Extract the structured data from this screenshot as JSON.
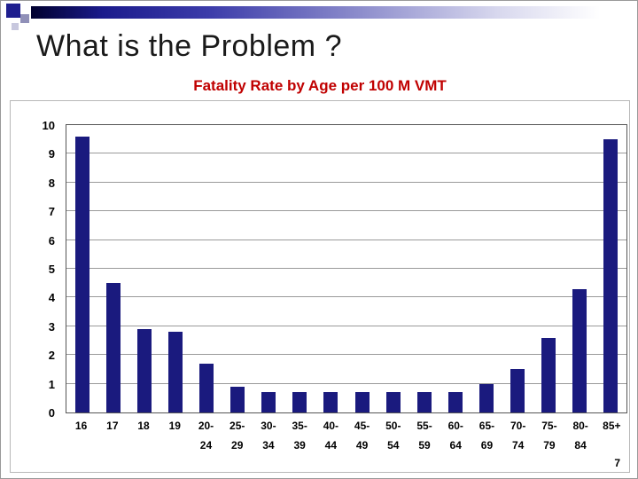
{
  "slide": {
    "title": "What is the Problem ?",
    "page_number": "7"
  },
  "chart_data": {
    "type": "bar",
    "title": "Fatality Rate by Age per 100 M VMT",
    "categories": [
      "16",
      "17",
      "18",
      "19",
      "20-24",
      "25-29",
      "30-34",
      "35-39",
      "40-44",
      "45-49",
      "50-54",
      "55-59",
      "60-64",
      "65-69",
      "70-74",
      "75-79",
      "80-84",
      "85+"
    ],
    "values": [
      9.6,
      4.5,
      2.9,
      2.8,
      1.7,
      0.9,
      0.7,
      0.7,
      0.7,
      0.7,
      0.7,
      0.7,
      0.7,
      1.0,
      1.5,
      2.6,
      4.3,
      9.5
    ],
    "title_color": "#c00000",
    "bar_color": "#1a1a7e",
    "xlabel": "",
    "ylabel": "",
    "ylim": [
      0,
      10
    ],
    "yticks": [
      0,
      1,
      2,
      3,
      4,
      5,
      6,
      7,
      8,
      9,
      10
    ],
    "grid": true,
    "legend": false
  }
}
